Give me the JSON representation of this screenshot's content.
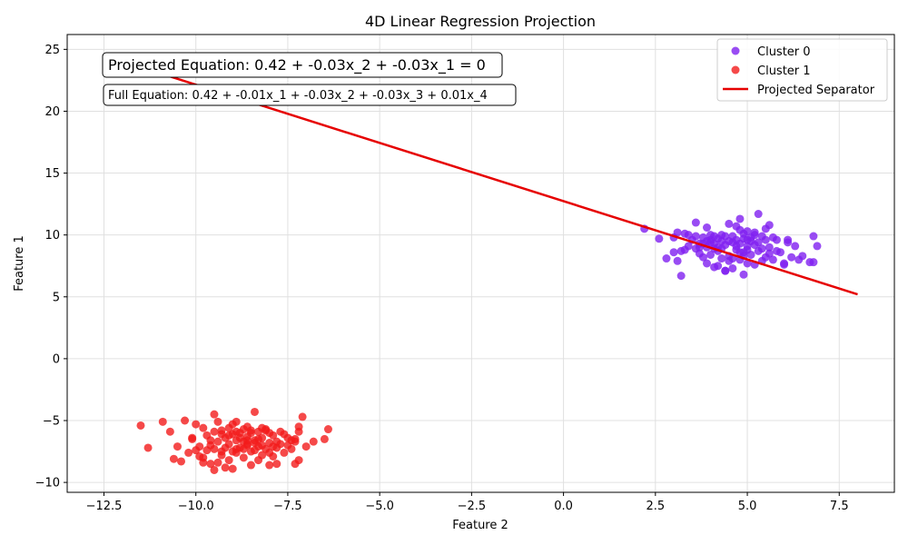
{
  "chart_data": {
    "type": "scatter",
    "title": "4D Linear Regression Projection",
    "xlabel": "Feature 2",
    "ylabel": "Feature 1",
    "xlim": [
      -13.5,
      9.0
    ],
    "ylim": [
      -10.8,
      26.2
    ],
    "xticks": [
      -12.5,
      -10.0,
      -7.5,
      -5.0,
      -2.5,
      0.0,
      2.5,
      5.0,
      7.5
    ],
    "xtick_labels": [
      "−12.5",
      "−10.0",
      "−7.5",
      "−5.0",
      "−2.5",
      "0.0",
      "2.5",
      "5.0",
      "7.5"
    ],
    "yticks": [
      -10,
      -5,
      0,
      5,
      10,
      15,
      20,
      25
    ],
    "ytick_labels": [
      "−10",
      "−5",
      "0",
      "5",
      "10",
      "15",
      "20",
      "25"
    ],
    "grid": true,
    "legend_position": "top-right",
    "colors": {
      "cluster0": "#7f1ff0",
      "cluster1": "#f21c1c",
      "separator": "#e60000"
    },
    "series": [
      {
        "name": "Cluster 0",
        "marker": "circle",
        "points": [
          [
            2.2,
            10.5
          ],
          [
            2.6,
            9.7
          ],
          [
            2.8,
            8.1
          ],
          [
            3.0,
            8.6
          ],
          [
            3.0,
            9.8
          ],
          [
            3.1,
            10.2
          ],
          [
            3.1,
            7.9
          ],
          [
            3.2,
            6.7
          ],
          [
            3.2,
            8.7
          ],
          [
            3.3,
            10.1
          ],
          [
            3.3,
            8.8
          ],
          [
            3.4,
            9.1
          ],
          [
            3.5,
            9.6
          ],
          [
            3.6,
            9.9
          ],
          [
            3.6,
            11.0
          ],
          [
            3.7,
            8.5
          ],
          [
            3.7,
            9.3
          ],
          [
            3.8,
            9.8
          ],
          [
            3.8,
            8.2
          ],
          [
            3.9,
            10.6
          ],
          [
            3.9,
            9.0
          ],
          [
            3.9,
            7.7
          ],
          [
            4.0,
            9.4
          ],
          [
            4.0,
            8.4
          ],
          [
            4.1,
            9.9
          ],
          [
            4.1,
            8.9
          ],
          [
            4.2,
            7.5
          ],
          [
            4.2,
            9.7
          ],
          [
            4.3,
            8.1
          ],
          [
            4.3,
            10.0
          ],
          [
            4.4,
            9.2
          ],
          [
            4.4,
            7.1
          ],
          [
            4.5,
            10.9
          ],
          [
            4.5,
            9.5
          ],
          [
            4.5,
            8.3
          ],
          [
            4.6,
            7.3
          ],
          [
            4.6,
            9.9
          ],
          [
            4.7,
            10.7
          ],
          [
            4.7,
            8.8
          ],
          [
            4.8,
            9.3
          ],
          [
            4.8,
            8.0
          ],
          [
            4.8,
            11.3
          ],
          [
            4.9,
            9.7
          ],
          [
            4.9,
            8.6
          ],
          [
            4.9,
            6.8
          ],
          [
            5.0,
            10.3
          ],
          [
            5.0,
            9.1
          ],
          [
            5.0,
            7.7
          ],
          [
            5.1,
            9.8
          ],
          [
            5.1,
            8.4
          ],
          [
            5.2,
            10.0
          ],
          [
            5.2,
            7.6
          ],
          [
            5.3,
            9.4
          ],
          [
            5.3,
            11.7
          ],
          [
            5.4,
            8.9
          ],
          [
            5.4,
            9.9
          ],
          [
            5.5,
            10.5
          ],
          [
            5.5,
            8.2
          ],
          [
            5.6,
            9.0
          ],
          [
            5.6,
            10.8
          ],
          [
            5.7,
            8.0
          ],
          [
            5.8,
            9.6
          ],
          [
            5.9,
            8.6
          ],
          [
            6.0,
            7.6
          ],
          [
            6.1,
            9.4
          ],
          [
            6.2,
            8.2
          ],
          [
            6.3,
            9.1
          ],
          [
            6.4,
            8.0
          ],
          [
            6.5,
            8.3
          ],
          [
            6.7,
            7.8
          ],
          [
            6.8,
            9.9
          ],
          [
            6.8,
            7.8
          ],
          [
            6.9,
            9.1
          ],
          [
            4.0,
            9.6
          ],
          [
            4.2,
            8.7
          ],
          [
            4.4,
            9.9
          ],
          [
            4.6,
            8.1
          ],
          [
            4.7,
            9.6
          ],
          [
            5.0,
            8.8
          ],
          [
            5.2,
            9.2
          ],
          [
            3.9,
            9.5
          ],
          [
            4.1,
            9.3
          ],
          [
            4.3,
            8.9
          ],
          [
            4.5,
            7.9
          ],
          [
            4.7,
            9.1
          ],
          [
            4.9,
            10.1
          ],
          [
            5.1,
            9.5
          ],
          [
            5.3,
            8.7
          ],
          [
            5.5,
            9.6
          ],
          [
            5.7,
            9.8
          ],
          [
            3.6,
            8.9
          ],
          [
            3.8,
            9.3
          ],
          [
            4.0,
            10.0
          ],
          [
            4.2,
            9.0
          ],
          [
            4.4,
            7.1
          ],
          [
            4.6,
            9.4
          ],
          [
            4.8,
            10.4
          ],
          [
            5.0,
            9.6
          ],
          [
            5.4,
            7.9
          ],
          [
            5.8,
            8.7
          ],
          [
            6.0,
            7.7
          ],
          [
            6.1,
            9.6
          ],
          [
            3.4,
            10.0
          ],
          [
            3.7,
            9.0
          ],
          [
            4.1,
            7.4
          ],
          [
            4.9,
            8.3
          ],
          [
            5.2,
            10.2
          ],
          [
            5.6,
            8.5
          ],
          [
            4.3,
            9.5
          ],
          [
            4.8,
            8.6
          ]
        ]
      },
      {
        "name": "Cluster 1",
        "marker": "circle",
        "points": [
          [
            -11.5,
            -5.4
          ],
          [
            -11.3,
            -7.2
          ],
          [
            -10.9,
            -5.1
          ],
          [
            -10.7,
            -5.9
          ],
          [
            -10.6,
            -8.1
          ],
          [
            -10.5,
            -7.1
          ],
          [
            -10.4,
            -8.3
          ],
          [
            -10.3,
            -5.0
          ],
          [
            -10.2,
            -7.6
          ],
          [
            -10.1,
            -6.4
          ],
          [
            -10.0,
            -5.3
          ],
          [
            -10.0,
            -7.4
          ],
          [
            -9.9,
            -7.9
          ],
          [
            -9.8,
            -8.4
          ],
          [
            -9.8,
            -5.6
          ],
          [
            -9.7,
            -7.4
          ],
          [
            -9.6,
            -6.6
          ],
          [
            -9.6,
            -8.5
          ],
          [
            -9.5,
            -4.5
          ],
          [
            -9.5,
            -7.3
          ],
          [
            -9.5,
            -9.0
          ],
          [
            -9.4,
            -5.1
          ],
          [
            -9.4,
            -6.7
          ],
          [
            -9.3,
            -7.8
          ],
          [
            -9.3,
            -5.8
          ],
          [
            -9.2,
            -7.2
          ],
          [
            -9.2,
            -8.8
          ],
          [
            -9.1,
            -6.2
          ],
          [
            -9.1,
            -5.6
          ],
          [
            -9.0,
            -7.5
          ],
          [
            -9.0,
            -8.9
          ],
          [
            -8.9,
            -6.6
          ],
          [
            -8.9,
            -5.1
          ],
          [
            -8.8,
            -7.2
          ],
          [
            -8.8,
            -6.0
          ],
          [
            -8.7,
            -8.0
          ],
          [
            -8.7,
            -5.7
          ],
          [
            -8.6,
            -6.9
          ],
          [
            -8.6,
            -6.3
          ],
          [
            -8.5,
            -7.5
          ],
          [
            -8.5,
            -8.6
          ],
          [
            -8.4,
            -4.3
          ],
          [
            -8.4,
            -6.6
          ],
          [
            -8.3,
            -7.1
          ],
          [
            -8.3,
            -5.9
          ],
          [
            -8.2,
            -6.4
          ],
          [
            -8.2,
            -7.8
          ],
          [
            -8.1,
            -5.7
          ],
          [
            -8.0,
            -8.6
          ],
          [
            -8.0,
            -6.8
          ],
          [
            -7.9,
            -6.2
          ],
          [
            -7.8,
            -8.5
          ],
          [
            -7.8,
            -7.2
          ],
          [
            -7.7,
            -5.9
          ],
          [
            -7.6,
            -7.6
          ],
          [
            -7.5,
            -6.4
          ],
          [
            -7.4,
            -7.3
          ],
          [
            -7.3,
            -8.5
          ],
          [
            -7.3,
            -6.5
          ],
          [
            -7.2,
            -5.5
          ],
          [
            -7.2,
            -8.2
          ],
          [
            -7.1,
            -4.7
          ],
          [
            -7.0,
            -7.1
          ],
          [
            -6.8,
            -6.7
          ],
          [
            -6.5,
            -6.5
          ],
          [
            -6.4,
            -5.7
          ],
          [
            -7.2,
            -5.9
          ],
          [
            -7.4,
            -6.6
          ],
          [
            -7.6,
            -6.1
          ],
          [
            -7.9,
            -7.9
          ],
          [
            -8.1,
            -7.3
          ],
          [
            -8.3,
            -6.5
          ],
          [
            -8.5,
            -5.8
          ],
          [
            -8.7,
            -6.7
          ],
          [
            -8.9,
            -7.6
          ],
          [
            -9.1,
            -6.9
          ],
          [
            -9.3,
            -6.1
          ],
          [
            -9.5,
            -5.9
          ],
          [
            -9.7,
            -6.2
          ],
          [
            -9.9,
            -7.1
          ],
          [
            -8.6,
            -7.0
          ],
          [
            -8.8,
            -6.4
          ],
          [
            -9.0,
            -6.1
          ],
          [
            -8.2,
            -7.0
          ],
          [
            -8.4,
            -7.4
          ],
          [
            -7.8,
            -6.7
          ],
          [
            -8.0,
            -7.6
          ],
          [
            -9.2,
            -6.4
          ],
          [
            -8.6,
            -5.5
          ],
          [
            -8.1,
            -5.8
          ],
          [
            -9.4,
            -8.4
          ],
          [
            -9.0,
            -5.3
          ],
          [
            -8.5,
            -6.0
          ],
          [
            -7.7,
            -6.9
          ],
          [
            -8.9,
            -7.3
          ],
          [
            -9.6,
            -7.0
          ],
          [
            -10.1,
            -6.5
          ],
          [
            -8.3,
            -8.2
          ],
          [
            -7.5,
            -7.0
          ],
          [
            -8.7,
            -7.3
          ],
          [
            -9.1,
            -8.2
          ],
          [
            -8.0,
            -6.0
          ],
          [
            -9.8,
            -8.0
          ],
          [
            -8.6,
            -6.6
          ],
          [
            -7.3,
            -6.7
          ],
          [
            -9.3,
            -7.5
          ],
          [
            -8.4,
            -6.8
          ],
          [
            -8.9,
            -5.9
          ],
          [
            -7.9,
            -7.1
          ],
          [
            -8.2,
            -5.6
          ]
        ]
      }
    ],
    "line": {
      "name": "Projected Separator",
      "points": [
        [
          -12.5,
          24.5
        ],
        [
          8.0,
          5.2
        ]
      ]
    },
    "annotations": {
      "projected": "Projected Equation: 0.42 + -0.03x_2 + -0.03x_1 = 0",
      "full": "Full Equation: 0.42 + -0.01x_1 + -0.03x_2 + -0.03x_3 + 0.01x_4"
    }
  }
}
